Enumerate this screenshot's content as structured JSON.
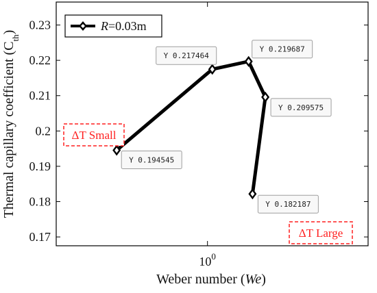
{
  "chart_data": {
    "type": "line",
    "title": "",
    "xlabel": {
      "text": "Weber number (",
      "symbol": "We",
      "suffix": ")"
    },
    "ylabel": {
      "text": "Thermal capillary coefficient (C",
      "subscript": "th",
      "suffix": ")"
    },
    "xscale": "log",
    "xlim": [
      0.12,
      9.5
    ],
    "ylim": [
      0.1675,
      0.2365
    ],
    "xticks": [
      {
        "value": 1,
        "base": "10",
        "exponent": "0"
      }
    ],
    "yticks": [
      {
        "value": 0.17,
        "label": "0.17"
      },
      {
        "value": 0.18,
        "label": "0.18"
      },
      {
        "value": 0.19,
        "label": "0.19"
      },
      {
        "value": 0.2,
        "label": "0.2"
      },
      {
        "value": 0.21,
        "label": "0.21"
      },
      {
        "value": 0.22,
        "label": "0.22"
      },
      {
        "value": 0.23,
        "label": "0.23"
      }
    ],
    "grid": false,
    "legend": {
      "position": "top-left",
      "entries": [
        {
          "symbol_name": "diamond-marker",
          "var": "R",
          "rest": "=0.03m",
          "color": "#000000"
        }
      ]
    },
    "series": [
      {
        "name": "R=0.03m",
        "color": "#000000",
        "marker": "diamond",
        "points": [
          {
            "x": 0.28,
            "y": 0.194545,
            "tip": "Y 0.194545",
            "tip_side": "below"
          },
          {
            "x": 1.07,
            "y": 0.217464,
            "tip": "Y 0.217464",
            "tip_side": "upper-left"
          },
          {
            "x": 1.78,
            "y": 0.219687,
            "tip": "Y 0.219687",
            "tip_side": "upper-right"
          },
          {
            "x": 2.25,
            "y": 0.209575,
            "tip": "Y 0.209575",
            "tip_side": "right"
          },
          {
            "x": 1.88,
            "y": 0.182187,
            "tip": "Y 0.182187",
            "tip_side": "right"
          }
        ]
      }
    ],
    "annotations": [
      {
        "text": "ΔT Small",
        "color": "#ff1e1e",
        "style": "dashed-box"
      },
      {
        "text": "ΔT Large",
        "color": "#ff1e1e",
        "style": "dashed-box"
      }
    ]
  }
}
